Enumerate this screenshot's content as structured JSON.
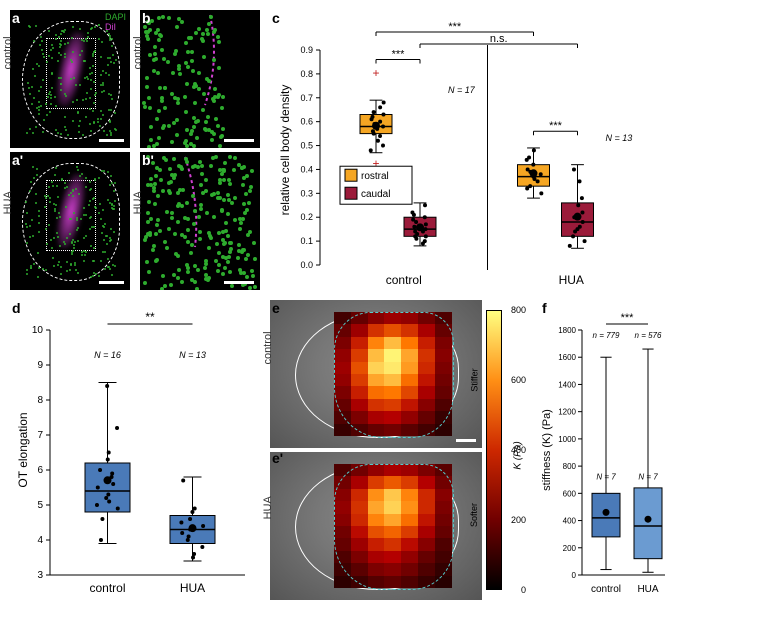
{
  "colors": {
    "dapi": "#2eab2e",
    "dil": "#d040d0",
    "rostral": "#f5a623",
    "caudal": "#9b1b3a",
    "box_blue": "#4a7ab8",
    "box_blue_light": "#6b9bd1",
    "heatmap_low": "#1a0000",
    "heatmap_mid": "#d03000",
    "heatmap_high": "#ffff80",
    "outlier": "#c02020"
  },
  "panel_a": {
    "label_top": "a",
    "label_bottom": "a'",
    "side_top": "control",
    "side_bottom": "HUA",
    "legend1": "DAPI",
    "legend2": "DiI",
    "scalebar_width": 25
  },
  "panel_b": {
    "label_top": "b",
    "label_bottom": "b'",
    "side_top": "control",
    "side_bottom": "HUA",
    "scalebar_width": 30
  },
  "panel_c": {
    "label": "c",
    "ylabel": "relative cell body density",
    "ylim": [
      0,
      0.9
    ],
    "ytick_step": 0.1,
    "groups": [
      "control",
      "HUA"
    ],
    "legend": [
      "rostral",
      "caudal"
    ],
    "n_control": "N = 17",
    "n_hua": "N = 13",
    "sig": {
      "c_rc": "***",
      "h_rc": "***",
      "rostral": "***",
      "caudal": "n.s."
    },
    "boxes": {
      "control_rostral": {
        "q1": 0.55,
        "med": 0.58,
        "q3": 0.63,
        "wlo": 0.47,
        "whi": 0.69,
        "pts": [
          0.58,
          0.6,
          0.55,
          0.62,
          0.57,
          0.63,
          0.54,
          0.68,
          0.5,
          0.59,
          0.52,
          0.61,
          0.56,
          0.64,
          0.48,
          0.66,
          0.58
        ],
        "outliers": [
          0.8,
          0.42
        ]
      },
      "control_caudal": {
        "q1": 0.12,
        "med": 0.15,
        "q3": 0.2,
        "wlo": 0.08,
        "whi": 0.26,
        "pts": [
          0.12,
          0.18,
          0.14,
          0.1,
          0.2,
          0.15,
          0.22,
          0.11,
          0.19,
          0.13,
          0.25,
          0.16,
          0.09,
          0.17,
          0.21,
          0.14,
          0.12
        ]
      },
      "hua_rostral": {
        "q1": 0.33,
        "med": 0.37,
        "q3": 0.42,
        "wlo": 0.28,
        "whi": 0.49,
        "pts": [
          0.35,
          0.38,
          0.42,
          0.3,
          0.45,
          0.33,
          0.4,
          0.36,
          0.48,
          0.32,
          0.39,
          0.37,
          0.44
        ]
      },
      "hua_caudal": {
        "q1": 0.12,
        "med": 0.18,
        "q3": 0.26,
        "wlo": 0.07,
        "whi": 0.42,
        "pts": [
          0.15,
          0.22,
          0.1,
          0.28,
          0.18,
          0.12,
          0.35,
          0.2,
          0.08,
          0.25,
          0.16,
          0.4,
          0.14
        ]
      }
    }
  },
  "panel_d": {
    "label": "d",
    "ylabel": "OT elongation",
    "ylim": [
      3,
      10
    ],
    "ytick_step": 1,
    "groups": [
      "control",
      "HUA"
    ],
    "n_control": "N = 16",
    "n_hua": "N = 13",
    "sig": "**",
    "boxes": {
      "control": {
        "q1": 4.8,
        "med": 5.4,
        "q3": 6.2,
        "wlo": 3.9,
        "whi": 8.5,
        "pts": [
          5.2,
          5.8,
          4.9,
          6.5,
          5.1,
          5.5,
          7.2,
          4.6,
          6.0,
          5.3,
          8.4,
          4.0,
          5.9,
          6.3,
          5.0,
          5.6
        ]
      },
      "hua": {
        "q1": 3.9,
        "med": 4.3,
        "q3": 4.7,
        "wlo": 3.4,
        "whi": 5.8,
        "pts": [
          4.2,
          4.5,
          3.8,
          4.9,
          4.1,
          4.6,
          5.7,
          3.5,
          4.4,
          4.0,
          4.8,
          4.3,
          3.6
        ]
      }
    }
  },
  "panel_e": {
    "label_top": "e",
    "label_bottom": "e'",
    "side_top": "control",
    "side_bottom": "HUA",
    "colorbar_title": "K (Pa)",
    "colorbar_ticks": [
      0,
      200,
      400,
      600,
      800
    ],
    "colorbar_side_top": "Stiffer",
    "colorbar_side_bottom": "Softer",
    "scalebar_width": 20,
    "grid_cols": 7,
    "grid_rows": 10,
    "control_map": [
      [
        120,
        180,
        240,
        280,
        260,
        200,
        140
      ],
      [
        180,
        280,
        420,
        480,
        420,
        300,
        180
      ],
      [
        220,
        380,
        580,
        680,
        560,
        380,
        220
      ],
      [
        260,
        440,
        680,
        780,
        640,
        420,
        240
      ],
      [
        280,
        480,
        720,
        760,
        620,
        400,
        220
      ],
      [
        260,
        440,
        640,
        680,
        540,
        360,
        200
      ],
      [
        220,
        380,
        540,
        560,
        460,
        300,
        180
      ],
      [
        180,
        300,
        420,
        440,
        360,
        240,
        140
      ],
      [
        140,
        220,
        300,
        320,
        260,
        180,
        100
      ],
      [
        100,
        140,
        180,
        200,
        160,
        120,
        80
      ]
    ],
    "hua_map": [
      [
        140,
        200,
        260,
        300,
        280,
        220,
        160
      ],
      [
        200,
        300,
        440,
        500,
        440,
        320,
        200
      ],
      [
        240,
        400,
        600,
        700,
        580,
        400,
        240
      ],
      [
        260,
        420,
        640,
        720,
        600,
        400,
        220
      ],
      [
        240,
        400,
        580,
        640,
        540,
        360,
        200
      ],
      [
        200,
        340,
        480,
        520,
        440,
        300,
        180
      ],
      [
        180,
        280,
        380,
        420,
        340,
        240,
        140
      ],
      [
        140,
        220,
        300,
        320,
        260,
        180,
        120
      ],
      [
        110,
        160,
        220,
        240,
        200,
        140,
        90
      ],
      [
        80,
        110,
        150,
        170,
        140,
        100,
        70
      ]
    ]
  },
  "panel_f": {
    "label": "f",
    "ylabel": "stiffness (K) (Pa)",
    "ylim": [
      0,
      1800
    ],
    "ytick_step": 200,
    "groups": [
      "control",
      "HUA"
    ],
    "n_control_small": "n = 779",
    "n_hua_small": "n = 576",
    "N_control": "N = 7",
    "N_hua": "N = 7",
    "sig": "***",
    "boxes": {
      "control": {
        "q1": 280,
        "med": 420,
        "q3": 600,
        "wlo": 40,
        "whi": 1600,
        "mean": 460
      },
      "hua": {
        "q1": 120,
        "med": 360,
        "q3": 640,
        "wlo": 20,
        "whi": 1660,
        "mean": 410
      }
    }
  }
}
